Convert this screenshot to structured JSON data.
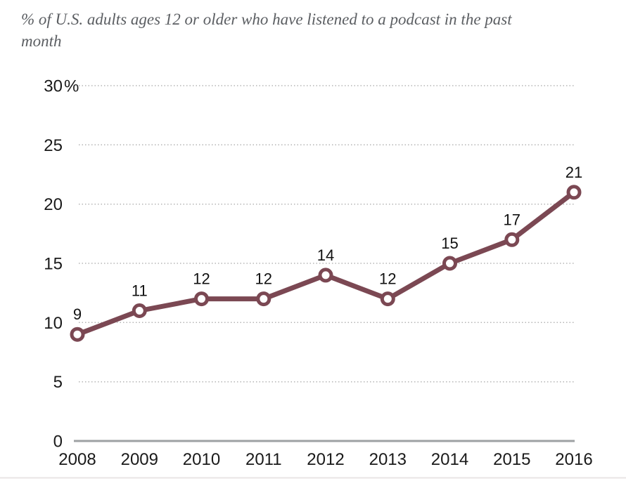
{
  "header": {
    "title": "% of U.S. adults ages 12 or older who have listened to a podcast in the past month",
    "title_lines": [
      "% of U.S. adults ages 12 or older who have listened to a podcast in the past",
      "month"
    ]
  },
  "chart_data": {
    "type": "line",
    "title": "% of U.S. adults ages 12 or older who have listened to a podcast in the past month",
    "categories": [
      "2008",
      "2009",
      "2010",
      "2011",
      "2012",
      "2013",
      "2014",
      "2015",
      "2016"
    ],
    "values": [
      9,
      11,
      12,
      12,
      14,
      12,
      15,
      17,
      21
    ],
    "point_labels": [
      "9",
      "11",
      "12",
      "12",
      "14",
      "12",
      "15",
      "17",
      "21"
    ],
    "xlabel": "",
    "ylabel": "",
    "ylim": [
      0,
      30
    ],
    "yticks": [
      0,
      5,
      10,
      15,
      20,
      25,
      30
    ],
    "ytick_top_suffix": "%",
    "grid": "horizontal-dotted",
    "legend": "none",
    "colors": {
      "line": "#7b4853",
      "marker_fill": "#ffffff",
      "marker_stroke": "#7b4853",
      "tick_label": "#1a1a1a",
      "point_label": "#111111",
      "gridline": "#b5b5b5",
      "axis_line": "#9ea1a3",
      "title": "#5b5e62",
      "bottom_rule": "#e9e4e4"
    }
  }
}
